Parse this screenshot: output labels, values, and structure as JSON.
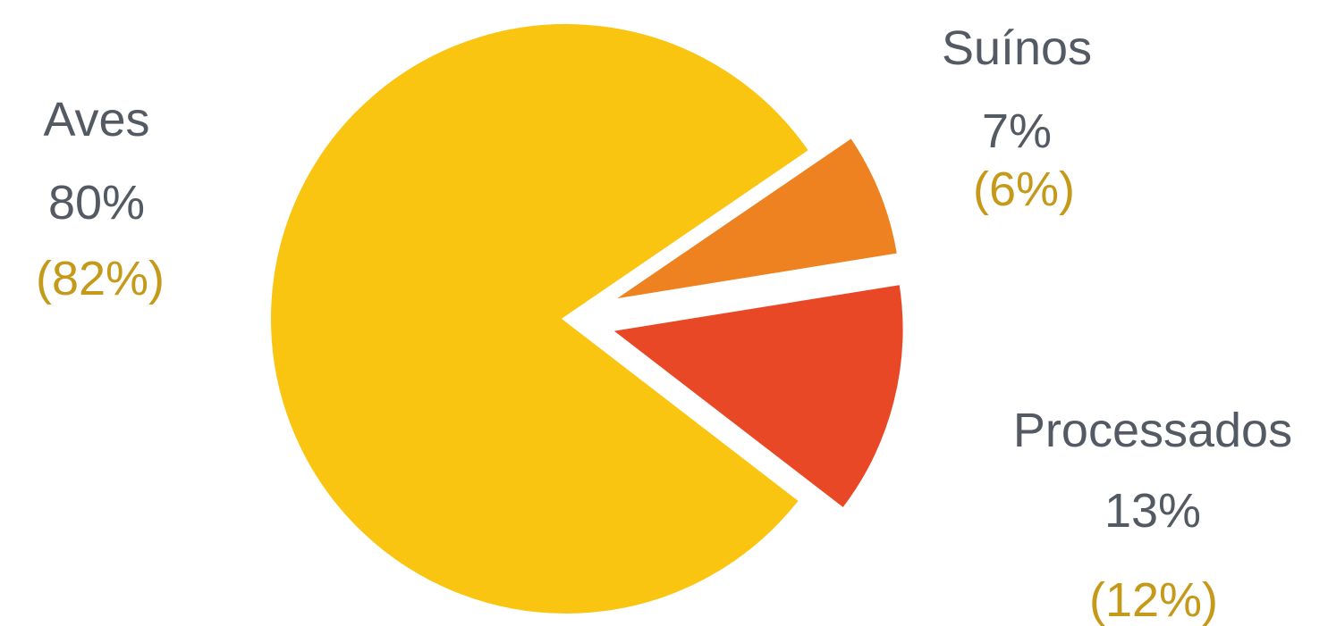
{
  "chart_data": {
    "type": "pie",
    "slices": [
      {
        "name": "Aves",
        "value": 80,
        "value_label": "80%",
        "previous_value": 82,
        "previous_label": "(82%)",
        "color": "#f9c511"
      },
      {
        "name": "Suínos",
        "value": 7,
        "value_label": "7%",
        "previous_value": 6,
        "previous_label": "(6%)",
        "color": "#ee8220"
      },
      {
        "name": "Processados",
        "value": 13,
        "value_label": "13%",
        "previous_value": 12,
        "previous_label": "(12%)",
        "color": "#e84826"
      }
    ],
    "label_colors": {
      "name": "#545a63",
      "value": "#545a63",
      "previous": "#c59a1a"
    },
    "exploded": [
      "Suínos",
      "Processados"
    ],
    "legend": "none"
  }
}
